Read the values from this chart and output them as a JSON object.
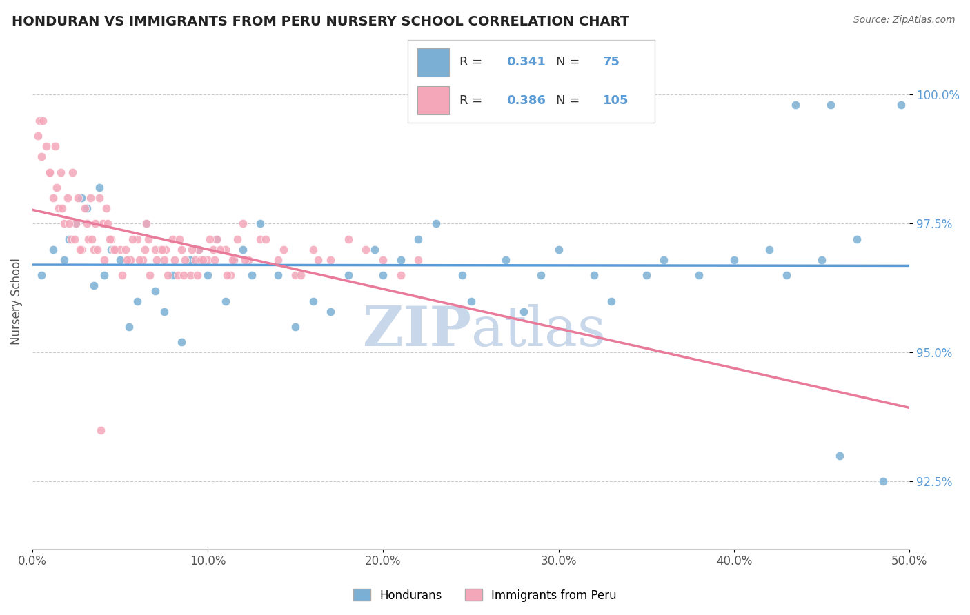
{
  "title": "HONDURAN VS IMMIGRANTS FROM PERU NURSERY SCHOOL CORRELATION CHART",
  "source_text": "Source: ZipAtlas.com",
  "ylabel": "Nursery School",
  "xmin": 0.0,
  "xmax": 50.0,
  "ymin": 91.2,
  "ymax": 100.8,
  "yticks": [
    92.5,
    95.0,
    97.5,
    100.0
  ],
  "xticks": [
    0.0,
    10.0,
    20.0,
    30.0,
    40.0,
    50.0
  ],
  "blue_color": "#7bafd4",
  "pink_color": "#f4a7b9",
  "blue_line_color": "#5b9bd5",
  "pink_line_color": "#e87a9a",
  "R_blue": 0.341,
  "N_blue": 75,
  "R_pink": 0.386,
  "N_pink": 105,
  "blue_scatter_x": [
    0.5,
    1.2,
    1.8,
    2.1,
    2.5,
    2.8,
    3.1,
    3.5,
    3.8,
    4.1,
    4.5,
    5.0,
    5.5,
    6.0,
    6.5,
    7.0,
    7.5,
    8.0,
    8.5,
    9.0,
    9.5,
    10.0,
    10.5,
    11.0,
    11.5,
    12.0,
    12.5,
    13.0,
    14.0,
    15.0,
    16.0,
    17.0,
    18.0,
    19.5,
    20.0,
    21.0,
    22.0,
    23.0,
    24.5,
    25.0,
    27.0,
    28.0,
    29.0,
    30.0,
    32.0,
    33.0,
    35.0,
    36.0,
    38.0,
    40.0,
    42.0,
    43.0,
    45.0,
    46.0,
    47.0,
    48.5,
    43.5,
    45.5,
    49.5
  ],
  "blue_scatter_y": [
    96.5,
    97.0,
    96.8,
    97.2,
    97.5,
    98.0,
    97.8,
    96.3,
    98.2,
    96.5,
    97.0,
    96.8,
    95.5,
    96.0,
    97.5,
    96.2,
    95.8,
    96.5,
    95.2,
    96.8,
    97.0,
    96.5,
    97.2,
    96.0,
    96.8,
    97.0,
    96.5,
    97.5,
    96.5,
    95.5,
    96.0,
    95.8,
    96.5,
    97.0,
    96.5,
    96.8,
    97.2,
    97.5,
    96.5,
    96.0,
    96.8,
    95.8,
    96.5,
    97.0,
    96.5,
    96.0,
    96.5,
    96.8,
    96.5,
    96.8,
    97.0,
    96.5,
    96.8,
    93.0,
    97.2,
    92.5,
    99.8,
    99.8,
    99.8
  ],
  "pink_scatter_x": [
    0.3,
    0.5,
    0.8,
    1.0,
    1.2,
    1.5,
    1.8,
    2.0,
    2.2,
    2.5,
    2.8,
    3.0,
    3.2,
    3.5,
    3.8,
    4.0,
    4.2,
    4.5,
    5.0,
    5.5,
    6.0,
    6.5,
    7.0,
    7.5,
    8.0,
    8.5,
    9.0,
    9.5,
    10.0,
    10.5,
    11.0,
    11.5,
    12.0,
    13.0,
    14.0,
    15.0,
    16.0,
    17.0,
    18.0,
    19.0,
    20.0,
    21.0,
    22.0,
    0.4,
    1.3,
    2.3,
    3.3,
    4.3,
    5.3,
    6.3,
    7.3,
    8.3,
    9.3,
    10.3,
    11.3,
    12.3,
    13.3,
    14.3,
    15.3,
    16.3,
    1.6,
    2.6,
    3.6,
    4.6,
    5.6,
    6.6,
    7.6,
    8.6,
    9.6,
    0.6,
    1.0,
    1.4,
    1.7,
    2.1,
    2.4,
    2.7,
    3.1,
    3.4,
    3.7,
    4.1,
    4.4,
    4.7,
    5.1,
    5.4,
    5.7,
    6.1,
    6.4,
    6.7,
    7.1,
    7.4,
    7.7,
    8.1,
    8.4,
    8.7,
    9.1,
    9.4,
    9.7,
    10.1,
    10.4,
    10.7,
    11.1,
    11.4,
    11.7,
    12.1,
    3.9
  ],
  "pink_scatter_y": [
    99.2,
    98.8,
    99.0,
    98.5,
    98.0,
    97.8,
    97.5,
    98.0,
    97.2,
    97.5,
    97.0,
    97.8,
    97.2,
    97.0,
    98.0,
    97.5,
    97.8,
    97.2,
    97.0,
    96.8,
    97.2,
    97.5,
    97.0,
    96.8,
    97.2,
    97.0,
    96.5,
    97.0,
    96.8,
    97.2,
    97.0,
    96.8,
    97.5,
    97.2,
    96.8,
    96.5,
    97.0,
    96.8,
    97.2,
    97.0,
    96.8,
    96.5,
    96.8,
    99.5,
    99.0,
    98.5,
    98.0,
    97.5,
    97.0,
    96.8,
    97.0,
    96.5,
    96.8,
    97.0,
    96.5,
    96.8,
    97.2,
    97.0,
    96.5,
    96.8,
    98.5,
    98.0,
    97.5,
    97.0,
    96.8,
    97.2,
    97.0,
    96.5,
    96.8,
    99.5,
    98.5,
    98.2,
    97.8,
    97.5,
    97.2,
    97.0,
    97.5,
    97.2,
    97.0,
    96.8,
    97.2,
    97.0,
    96.5,
    96.8,
    97.2,
    96.8,
    97.0,
    96.5,
    96.8,
    97.0,
    96.5,
    96.8,
    97.2,
    96.8,
    97.0,
    96.5,
    96.8,
    97.2,
    96.8,
    97.0,
    96.5,
    96.8,
    97.2,
    96.8,
    93.5
  ],
  "watermark_zip": "ZIP",
  "watermark_atlas": "atlas",
  "watermark_color": "#c8d8ea",
  "grid_color": "#cccccc",
  "bg_color": "#ffffff",
  "bottom_legend_labels": [
    "Hondurans",
    "Immigrants from Peru"
  ]
}
